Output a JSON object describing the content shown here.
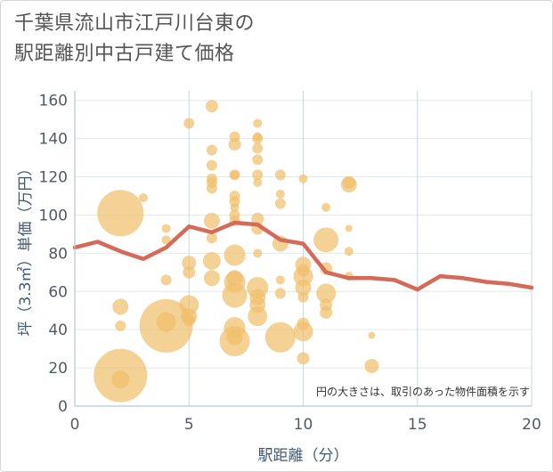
{
  "chart_data": {
    "type": "scatter",
    "title_lines": [
      "千葉県流山市江戸川台東の",
      "駅距離別中古戸建て価格"
    ],
    "xlabel": "駅距離（分）",
    "ylabel": "坪（3.3㎡）単価（万円）",
    "note": "円の大きさは、取引のあった物件面積を示す",
    "xlim": [
      0,
      20
    ],
    "ylim": [
      0,
      165
    ],
    "x_ticks": [
      0,
      5,
      10,
      15,
      20
    ],
    "y_ticks": [
      0,
      20,
      40,
      60,
      80,
      100,
      120,
      140,
      160
    ],
    "grid": true,
    "colors": {
      "bubble": "#f0bf6c",
      "line": "#d46a57",
      "axis": "#b3c7d6",
      "text": "#4f5b66"
    },
    "series": [
      {
        "type": "bubble",
        "points": [
          {
            "x": 2,
            "y": 101,
            "r": 26
          },
          {
            "x": 2,
            "y": 16,
            "r": 30
          },
          {
            "x": 2,
            "y": 52,
            "r": 9
          },
          {
            "x": 2,
            "y": 42,
            "r": 6
          },
          {
            "x": 2,
            "y": 14,
            "r": 10
          },
          {
            "x": 3,
            "y": 109,
            "r": 5
          },
          {
            "x": 4,
            "y": 93,
            "r": 5
          },
          {
            "x": 4,
            "y": 87,
            "r": 5
          },
          {
            "x": 4,
            "y": 66,
            "r": 6
          },
          {
            "x": 4,
            "y": 42,
            "r": 30
          },
          {
            "x": 4,
            "y": 44,
            "r": 11
          },
          {
            "x": 5,
            "y": 148,
            "r": 6
          },
          {
            "x": 5,
            "y": 75,
            "r": 8
          },
          {
            "x": 5,
            "y": 70,
            "r": 7
          },
          {
            "x": 5,
            "y": 53,
            "r": 11
          },
          {
            "x": 5,
            "y": 47,
            "r": 9
          },
          {
            "x": 5,
            "y": 45,
            "r": 7
          },
          {
            "x": 6,
            "y": 157,
            "r": 7
          },
          {
            "x": 6,
            "y": 134,
            "r": 6
          },
          {
            "x": 6,
            "y": 126,
            "r": 6
          },
          {
            "x": 6,
            "y": 119,
            "r": 6
          },
          {
            "x": 6,
            "y": 117,
            "r": 6
          },
          {
            "x": 6,
            "y": 114,
            "r": 6
          },
          {
            "x": 6,
            "y": 97,
            "r": 9
          },
          {
            "x": 6,
            "y": 88,
            "r": 6
          },
          {
            "x": 6,
            "y": 76,
            "r": 10
          },
          {
            "x": 6,
            "y": 67,
            "r": 9
          },
          {
            "x": 7,
            "y": 141,
            "r": 6
          },
          {
            "x": 7,
            "y": 137,
            "r": 7
          },
          {
            "x": 7,
            "y": 121,
            "r": 6
          },
          {
            "x": 7,
            "y": 121,
            "r": 5
          },
          {
            "x": 7,
            "y": 110,
            "r": 6
          },
          {
            "x": 7,
            "y": 107,
            "r": 6
          },
          {
            "x": 7,
            "y": 104,
            "r": 5
          },
          {
            "x": 7,
            "y": 100,
            "r": 6
          },
          {
            "x": 7,
            "y": 97,
            "r": 6
          },
          {
            "x": 7,
            "y": 79,
            "r": 12
          },
          {
            "x": 7,
            "y": 67,
            "r": 9
          },
          {
            "x": 7,
            "y": 65,
            "r": 12
          },
          {
            "x": 7,
            "y": 58,
            "r": 14
          },
          {
            "x": 7,
            "y": 41,
            "r": 12
          },
          {
            "x": 7,
            "y": 36,
            "r": 9
          },
          {
            "x": 7,
            "y": 34,
            "r": 17
          },
          {
            "x": 8,
            "y": 148,
            "r": 5
          },
          {
            "x": 8,
            "y": 141,
            "r": 5
          },
          {
            "x": 8,
            "y": 140,
            "r": 6
          },
          {
            "x": 8,
            "y": 135,
            "r": 6
          },
          {
            "x": 8,
            "y": 129,
            "r": 6
          },
          {
            "x": 8,
            "y": 121,
            "r": 6
          },
          {
            "x": 8,
            "y": 117,
            "r": 5
          },
          {
            "x": 8,
            "y": 98,
            "r": 7
          },
          {
            "x": 8,
            "y": 93,
            "r": 7
          },
          {
            "x": 8,
            "y": 80,
            "r": 5
          },
          {
            "x": 8,
            "y": 62,
            "r": 12
          },
          {
            "x": 8,
            "y": 57,
            "r": 9
          },
          {
            "x": 8,
            "y": 53,
            "r": 9
          },
          {
            "x": 8,
            "y": 47,
            "r": 11
          },
          {
            "x": 9,
            "y": 121,
            "r": 6
          },
          {
            "x": 9,
            "y": 111,
            "r": 5
          },
          {
            "x": 9,
            "y": 106,
            "r": 6
          },
          {
            "x": 9,
            "y": 85,
            "r": 9
          },
          {
            "x": 9,
            "y": 66,
            "r": 5
          },
          {
            "x": 9,
            "y": 59,
            "r": 6
          },
          {
            "x": 9,
            "y": 36,
            "r": 17
          },
          {
            "x": 10,
            "y": 119,
            "r": 5
          },
          {
            "x": 10,
            "y": 74,
            "r": 9
          },
          {
            "x": 10,
            "y": 71,
            "r": 7
          },
          {
            "x": 10,
            "y": 68,
            "r": 11
          },
          {
            "x": 10,
            "y": 62,
            "r": 9
          },
          {
            "x": 10,
            "y": 57,
            "r": 6
          },
          {
            "x": 10,
            "y": 43,
            "r": 7
          },
          {
            "x": 10,
            "y": 39,
            "r": 11
          },
          {
            "x": 10,
            "y": 25,
            "r": 7
          },
          {
            "x": 11,
            "y": 104,
            "r": 5
          },
          {
            "x": 11,
            "y": 87,
            "r": 14
          },
          {
            "x": 11,
            "y": 72,
            "r": 7
          },
          {
            "x": 11,
            "y": 59,
            "r": 11
          },
          {
            "x": 11,
            "y": 53,
            "r": 7
          },
          {
            "x": 11,
            "y": 49,
            "r": 7
          },
          {
            "x": 12,
            "y": 117,
            "r": 7
          },
          {
            "x": 12,
            "y": 116,
            "r": 9
          },
          {
            "x": 12,
            "y": 93,
            "r": 4
          },
          {
            "x": 12,
            "y": 81,
            "r": 5
          },
          {
            "x": 12,
            "y": 68,
            "r": 5
          },
          {
            "x": 13,
            "y": 37,
            "r": 4
          },
          {
            "x": 13,
            "y": 21,
            "r": 8
          }
        ]
      },
      {
        "type": "line",
        "x": [
          0,
          1,
          2,
          3,
          4,
          5,
          6,
          7,
          8,
          9,
          10,
          11,
          12,
          13,
          14,
          15,
          16,
          17,
          18,
          19,
          20
        ],
        "y": [
          83,
          86,
          81,
          77,
          83,
          94,
          91,
          96,
          95,
          87,
          85,
          70,
          67,
          67,
          66,
          61,
          68,
          67,
          65,
          64,
          62
        ]
      }
    ]
  }
}
